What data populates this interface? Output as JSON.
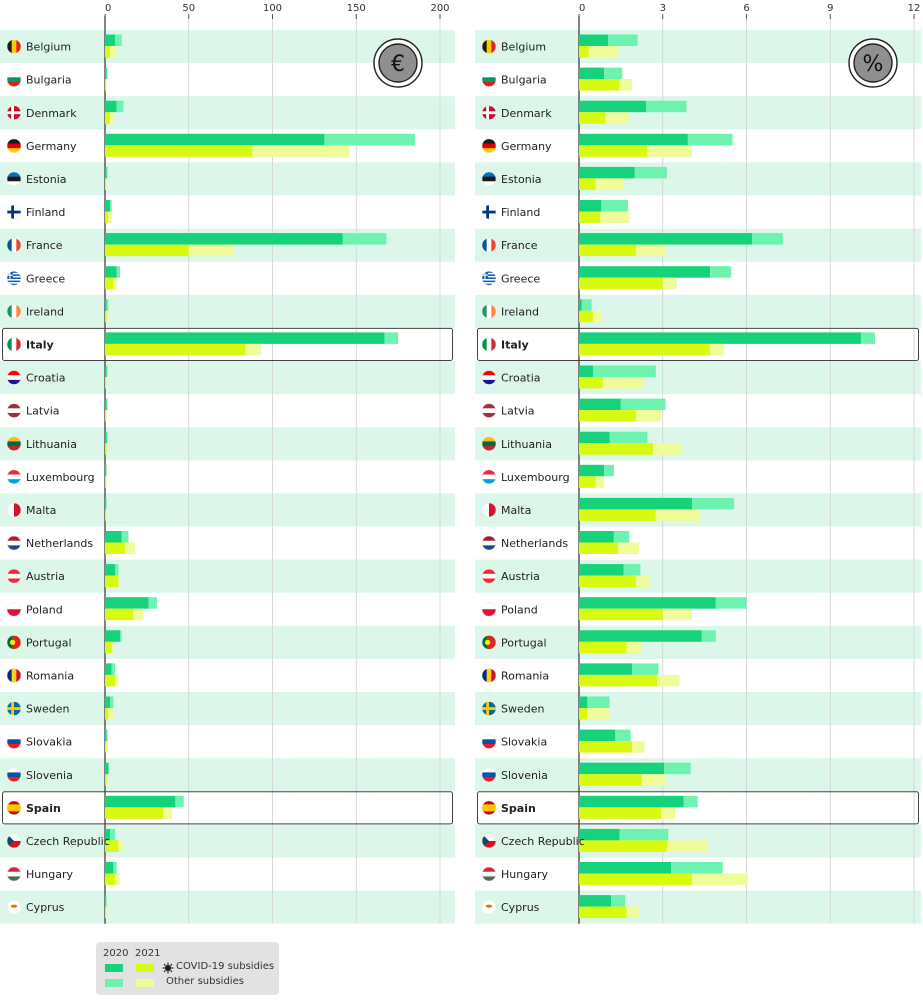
{
  "chart_data": [
    {
      "type": "bar",
      "orientation": "horizontal",
      "unit_symbol": "€",
      "xlim": [
        0,
        200
      ],
      "ticks": [
        0,
        50,
        100,
        150,
        200
      ],
      "grid": true,
      "categories": [
        "Belgium",
        "Bulgaria",
        "Denmark",
        "Germany",
        "Estonia",
        "Finland",
        "France",
        "Greece",
        "Ireland",
        "Italy",
        "Croatia",
        "Latvia",
        "Lithuania",
        "Luxembourg",
        "Malta",
        "Netherlands",
        "Austria",
        "Poland",
        "Portugal",
        "Romania",
        "Sweden",
        "Slovakia",
        "Slovenia",
        "Spain",
        "Czech Republic",
        "Hungary",
        "Cyprus"
      ],
      "highlighted": [
        "Italy",
        "Spain"
      ],
      "series": [
        {
          "year": "2020",
          "kind": "COVID-19 subsidies",
          "values": [
            6,
            1,
            7,
            131,
            1,
            3,
            142,
            7,
            1,
            167,
            1,
            1,
            1,
            0.5,
            0.5,
            10,
            6,
            26,
            9,
            4,
            3,
            1,
            2,
            42,
            3,
            5,
            0.5
          ]
        },
        {
          "year": "2020",
          "kind": "Other subsidies",
          "values": [
            4,
            0.5,
            4,
            54,
            0.5,
            1,
            26,
            2,
            1,
            8,
            0.5,
            0.5,
            0.5,
            0.5,
            0.5,
            4,
            2,
            5,
            1,
            2,
            2,
            0.5,
            0.5,
            5,
            3,
            2,
            0.5
          ]
        },
        {
          "year": "2021",
          "kind": "COVID-19 subsidies",
          "values": [
            3,
            0.5,
            3,
            88,
            0.5,
            2,
            50,
            5,
            1,
            84,
            0.5,
            0.5,
            1,
            0.5,
            0.5,
            12,
            8,
            17,
            4,
            6,
            2,
            1,
            1,
            35,
            8,
            6,
            0.5
          ]
        },
        {
          "year": "2021",
          "kind": "Other subsidies",
          "values": [
            4,
            0.5,
            2,
            58,
            0.5,
            2,
            27,
            2,
            1,
            9,
            0.5,
            0.5,
            0.5,
            0.5,
            0.5,
            6,
            1,
            6,
            1,
            2,
            3,
            0.5,
            0.5,
            5,
            3,
            3,
            0.5
          ]
        }
      ]
    },
    {
      "type": "bar",
      "orientation": "horizontal",
      "unit_symbol": "%",
      "xlim": [
        0,
        12
      ],
      "ticks": [
        0,
        3,
        6,
        9,
        12
      ],
      "grid": true,
      "categories": [
        "Belgium",
        "Bulgaria",
        "Denmark",
        "Germany",
        "Estonia",
        "Finland",
        "France",
        "Greece",
        "Ireland",
        "Italy",
        "Croatia",
        "Latvia",
        "Lithuania",
        "Luxembourg",
        "Malta",
        "Netherlands",
        "Austria",
        "Poland",
        "Portugal",
        "Romania",
        "Sweden",
        "Slovakia",
        "Slovenia",
        "Spain",
        "Czech Republic",
        "Hungary",
        "Cyprus"
      ],
      "highlighted": [
        "Italy",
        "Spain"
      ],
      "series": [
        {
          "year": "2020",
          "kind": "COVID-19 subsidies",
          "values": [
            1.05,
            0.9,
            2.4,
            3.9,
            2.0,
            0.8,
            6.2,
            4.7,
            0.1,
            10.1,
            0.5,
            1.5,
            1.1,
            0.9,
            4.05,
            1.25,
            1.6,
            4.9,
            4.4,
            1.9,
            0.3,
            1.3,
            3.05,
            3.75,
            1.45,
            3.3,
            1.15
          ]
        },
        {
          "year": "2020",
          "kind": "Other subsidies",
          "values": [
            1.05,
            0.65,
            1.45,
            1.6,
            1.15,
            0.95,
            1.1,
            0.75,
            0.35,
            0.5,
            2.25,
            1.6,
            1.35,
            0.35,
            1.5,
            0.55,
            0.6,
            1.1,
            0.5,
            0.95,
            0.8,
            0.55,
            0.95,
            0.5,
            1.75,
            1.85,
            0.5
          ]
        },
        {
          "year": "2021",
          "kind": "COVID-19 subsidies",
          "values": [
            0.35,
            1.45,
            0.95,
            2.45,
            0.6,
            0.75,
            2.05,
            3.0,
            0.5,
            4.7,
            0.85,
            2.05,
            2.65,
            0.6,
            2.75,
            1.4,
            2.05,
            3.0,
            1.7,
            2.8,
            0.3,
            1.9,
            2.25,
            2.95,
            3.15,
            4.05,
            1.7
          ]
        },
        {
          "year": "2021",
          "kind": "Other subsidies",
          "values": [
            1.05,
            0.45,
            0.85,
            1.6,
            1.0,
            1.05,
            1.05,
            0.5,
            0.3,
            0.5,
            1.45,
            0.9,
            1.0,
            0.3,
            1.6,
            0.75,
            0.45,
            1.05,
            0.55,
            0.8,
            0.8,
            0.45,
            0.85,
            0.5,
            1.45,
            2.0,
            0.45
          ]
        }
      ]
    }
  ],
  "legend": {
    "year_a": "2020",
    "year_b": "2021",
    "covid_label": "COVID-19 subsidies",
    "other_label": "Other subsidies"
  },
  "colors": {
    "covid_2020": "#16d37b",
    "other_2020": "#6ef2b0",
    "covid_2021": "#d8fa10",
    "other_2021": "#f0fb9a",
    "stripe": "#dcf7ea",
    "grid": "#d0d0d0",
    "axis": "#333333"
  },
  "flags": {
    "Belgium": {
      "type": "v",
      "c": [
        "#1a1a1a",
        "#f5d000",
        "#e3242b"
      ]
    },
    "Bulgaria": {
      "type": "h",
      "c": [
        "#ffffff",
        "#00966e",
        "#d62612"
      ]
    },
    "Denmark": {
      "type": "cross",
      "c": [
        "#c8102e",
        "#ffffff"
      ]
    },
    "Germany": {
      "type": "h",
      "c": [
        "#1a1a1a",
        "#dd0000",
        "#ffce00"
      ]
    },
    "Estonia": {
      "type": "h",
      "c": [
        "#0072ce",
        "#1a1a1a",
        "#ffffff"
      ]
    },
    "Finland": {
      "type": "cross",
      "c": [
        "#ffffff",
        "#003580"
      ]
    },
    "France": {
      "type": "v",
      "c": [
        "#0055a4",
        "#ffffff",
        "#ef4135"
      ]
    },
    "Greece": {
      "type": "stripes",
      "c": [
        "#0d5eaf",
        "#ffffff"
      ]
    },
    "Ireland": {
      "type": "v",
      "c": [
        "#169b62",
        "#ffffff",
        "#ff883e"
      ]
    },
    "Italy": {
      "type": "v",
      "c": [
        "#009246",
        "#ffffff",
        "#ce2b37"
      ]
    },
    "Croatia": {
      "type": "h",
      "c": [
        "#ff0000",
        "#ffffff",
        "#171796"
      ]
    },
    "Latvia": {
      "type": "h",
      "c": [
        "#9e3039",
        "#ffffff",
        "#9e3039"
      ]
    },
    "Lithuania": {
      "type": "h",
      "c": [
        "#fdb913",
        "#006a44",
        "#c1272d"
      ]
    },
    "Luxembourg": {
      "type": "h",
      "c": [
        "#ed2939",
        "#ffffff",
        "#00a1de"
      ]
    },
    "Malta": {
      "type": "v2",
      "c": [
        "#ffffff",
        "#cf142b"
      ]
    },
    "Netherlands": {
      "type": "h",
      "c": [
        "#ae1c28",
        "#ffffff",
        "#21468b"
      ]
    },
    "Austria": {
      "type": "h",
      "c": [
        "#ed2939",
        "#ffffff",
        "#ed2939"
      ]
    },
    "Poland": {
      "type": "h2",
      "c": [
        "#ffffff",
        "#dc143c"
      ]
    },
    "Portugal": {
      "type": "v2w",
      "c": [
        "#046a38",
        "#da291c"
      ]
    },
    "Romania": {
      "type": "v",
      "c": [
        "#002b7f",
        "#fcd116",
        "#ce1126"
      ]
    },
    "Sweden": {
      "type": "cross",
      "c": [
        "#006aa7",
        "#fecc00"
      ]
    },
    "Slovakia": {
      "type": "h",
      "c": [
        "#ffffff",
        "#0b4ea2",
        "#ee1c25"
      ]
    },
    "Slovenia": {
      "type": "h",
      "c": [
        "#ffffff",
        "#0054a6",
        "#ed1c24"
      ]
    },
    "Spain": {
      "type": "hs",
      "c": [
        "#c60b1e",
        "#ffc400",
        "#c60b1e"
      ]
    },
    "Czech Republic": {
      "type": "cz",
      "c": [
        "#ffffff",
        "#d7141a",
        "#11457e"
      ]
    },
    "Hungary": {
      "type": "h",
      "c": [
        "#ce2939",
        "#ffffff",
        "#477050"
      ]
    },
    "Cyprus": {
      "type": "dot",
      "c": [
        "#ffffff",
        "#d57800"
      ]
    }
  }
}
